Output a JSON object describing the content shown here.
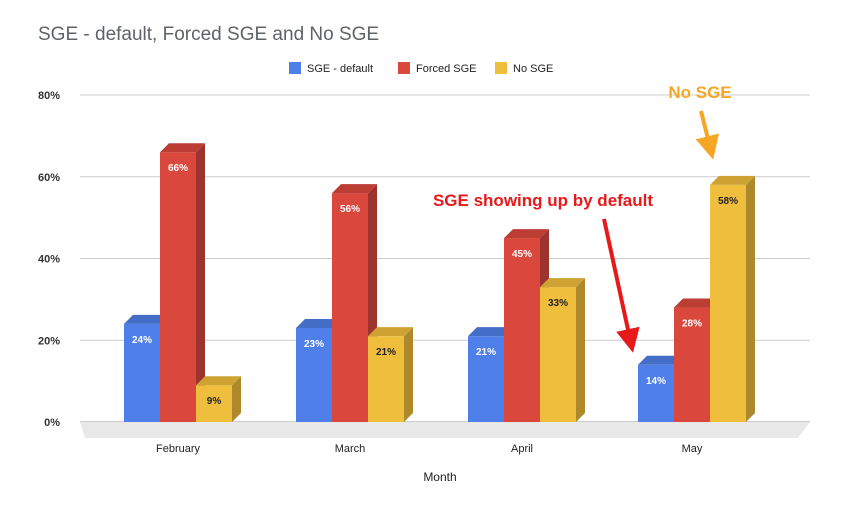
{
  "chart_data": {
    "type": "bar",
    "title": "SGE - default, Forced SGE and No SGE",
    "xlabel": "Month",
    "ylabel": "",
    "categories": [
      "February",
      "March",
      "April",
      "May"
    ],
    "ylim": [
      0,
      80
    ],
    "yticks": [
      0,
      20,
      40,
      60,
      80
    ],
    "ytick_labels": [
      "0%",
      "20%",
      "40%",
      "60%",
      "80%"
    ],
    "grid": true,
    "legend_position": "top",
    "style": "3d",
    "series": [
      {
        "name": "SGE - default",
        "color": "#4f7fe8",
        "values": [
          24,
          23,
          21,
          14
        ],
        "labels": [
          "24%",
          "23%",
          "21%",
          "14%"
        ]
      },
      {
        "name": "Forced SGE",
        "color": "#d9473d",
        "values": [
          66,
          56,
          45,
          28
        ],
        "labels": [
          "66%",
          "56%",
          "45%",
          "28%"
        ]
      },
      {
        "name": "No SGE",
        "color": "#f0be3d",
        "values": [
          9,
          21,
          33,
          58
        ],
        "labels": [
          "9%",
          "21%",
          "33%",
          "58%"
        ]
      }
    ],
    "annotations": [
      {
        "text": "No SGE",
        "color": "#f5a623",
        "target_category": "May",
        "target_series": "No SGE"
      },
      {
        "text": "SGE showing up by default",
        "color": "#e8191b",
        "target_category": "May",
        "target_series": "SGE - default"
      }
    ]
  }
}
